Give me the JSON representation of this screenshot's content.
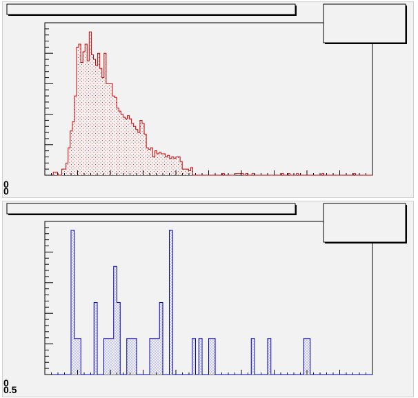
{
  "canvas": {
    "background": "#f2f2f2",
    "frame_color": "#000000"
  },
  "chart_data": [
    {
      "type": "bar",
      "style": "step-histogram",
      "color": "#cc0000",
      "fill": "red-hatched",
      "xlim": [
        0,
        100
      ],
      "ylim": [
        0,
        100
      ],
      "grid": false,
      "title": "",
      "stats_box": "top-right",
      "y_tick_labels": [
        "0",
        "0"
      ],
      "values": [
        0,
        0,
        0,
        0,
        2,
        2,
        0,
        0,
        4,
        4,
        8,
        18,
        29,
        35,
        52,
        84,
        86,
        74,
        81,
        86,
        75,
        94,
        79,
        76,
        72,
        80,
        70,
        64,
        80,
        60,
        60,
        60,
        52,
        51,
        44,
        42,
        40,
        38,
        37,
        39,
        37,
        34,
        32,
        30,
        28,
        36,
        34,
        27,
        18,
        17,
        18,
        12,
        16,
        14,
        15,
        14,
        14,
        12,
        13,
        11,
        12,
        11,
        12,
        12,
        9,
        4,
        4,
        4,
        3,
        5,
        0,
        0,
        0,
        0,
        0,
        0,
        0,
        0,
        0,
        0,
        0,
        0,
        0,
        0,
        1,
        0,
        0,
        0,
        0,
        0,
        1,
        1,
        1,
        1,
        0,
        1,
        0,
        0,
        1,
        0,
        0,
        0,
        0,
        0,
        0,
        0,
        0,
        0,
        0,
        0,
        0,
        0,
        1,
        0,
        0,
        1,
        0,
        0,
        0,
        1,
        0,
        0,
        0,
        0,
        0,
        0,
        0,
        0,
        0,
        0,
        0,
        1,
        0,
        0,
        0,
        0,
        0,
        0,
        0,
        0,
        0,
        0,
        0,
        0,
        0,
        0,
        1,
        0,
        0,
        0,
        0,
        0,
        0,
        0,
        0
      ]
    },
    {
      "type": "bar",
      "style": "step-histogram",
      "color": "#0000bb",
      "fill": "blue-dotted",
      "xlim": [
        0,
        100
      ],
      "ylim": [
        0,
        8.5
      ],
      "grid": false,
      "title": "",
      "stats_box": "top-right",
      "y_tick_labels": [
        "0",
        "0.5"
      ],
      "values": [
        0,
        0,
        0,
        0,
        0,
        0,
        0,
        0,
        8,
        2,
        2,
        0,
        0,
        0,
        0,
        4,
        0,
        0,
        2,
        2,
        2,
        6,
        4,
        0,
        0,
        2,
        2,
        2,
        0,
        0,
        0,
        0,
        2,
        2,
        2,
        4,
        0,
        0,
        8,
        0,
        0,
        0,
        0,
        0,
        0,
        2,
        0,
        2,
        0,
        0,
        2,
        2,
        0,
        0,
        0,
        0,
        0,
        0,
        0,
        0,
        0,
        0,
        0,
        2,
        0,
        0,
        0,
        0,
        2,
        0,
        0,
        0,
        0,
        0,
        0,
        0,
        0,
        0,
        0,
        2,
        2,
        0,
        0,
        0,
        0,
        0,
        0,
        0,
        0,
        0,
        0,
        0,
        0,
        0,
        0,
        0,
        0,
        0,
        0,
        0
      ]
    }
  ]
}
